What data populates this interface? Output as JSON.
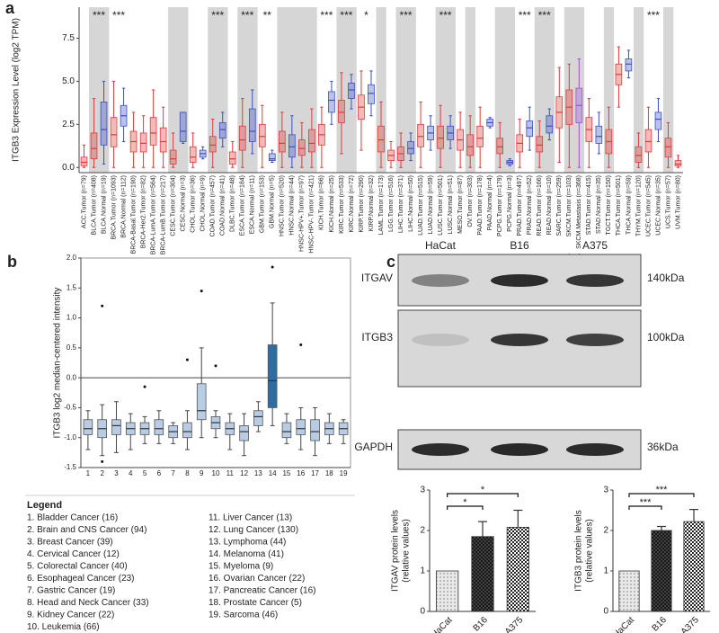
{
  "chart_data": [
    {
      "type": "box",
      "label": "a",
      "ylabel": "ITGB3 Expression Level (log2 TPM)",
      "categories": [
        "ACC.Tumor (n=79)",
        "BLCA.Tumor (n=408)",
        "BLCA.Normal (n=19)",
        "BRCA.Tumor (n=1093)",
        "BRCA.Normal (n=112)",
        "BRCA-Basal.Tumor (n=190)",
        "BRCA-Her2.Tumor (n=82)",
        "BRCA-LumA.Tumor (n=564)",
        "BRCA-LumB.Tumor (n=217)",
        "CESC.Tumor (n=304)",
        "CESC.Normal (n=3)",
        "CHOL.Tumor (n=36)",
        "CHOL.Normal (n=9)",
        "COAD.Tumor (n=457)",
        "COAD.Normal (n=41)",
        "DLBC.Tumor (n=48)",
        "ESCA.Tumor (n=184)",
        "ESCA.Normal (n=11)",
        "GBM.Tumor (n=153)",
        "GBM.Normal (n=5)",
        "HNSC.Tumor (n=520)",
        "HNSC.Normal (n=44)",
        "HNSC-HPV+.Tumor (n=97)",
        "HNSC-HPV-.Tumor (n=421)",
        "KICH.Tumor (n=66)",
        "KICH.Normal (n=25)",
        "KIRC.Tumor (n=533)",
        "KIRC.Normal (n=72)",
        "KIRP.Tumor (n=290)",
        "KIRP.Normal (n=32)",
        "LAML.Tumor (n=173)",
        "LGG.Tumor (n=516)",
        "LIHC.Tumor (n=371)",
        "LIHC.Normal (n=50)",
        "LUAD.Tumor (n=515)",
        "LUAD.Normal (n=59)",
        "LUSC.Tumor (n=501)",
        "LUSC.Normal (n=51)",
        "MESO.Tumor (n=87)",
        "OV.Tumor (n=303)",
        "PAAD.Tumor (n=178)",
        "PAAD.Normal (n=4)",
        "PCPG.Tumor (n=179)",
        "PCPG.Normal (n=3)",
        "PRAD.Tumor (n=497)",
        "PRAD.Normal (n=52)",
        "READ.Tumor (n=166)",
        "READ.Normal (n=10)",
        "SARC.Tumor (n=259)",
        "SKCM.Tumor (n=103)",
        "SKCM.Metastasis (n=368)",
        "STAD.Tumor (n=415)",
        "STAD.Normal (n=35)",
        "TGCT.Tumor (n=150)",
        "THCA.Tumor (n=501)",
        "THCA.Normal (n=59)",
        "THYM.Tumor (n=120)",
        "UCEC.Tumor (n=545)",
        "UCEC.Normal (n=35)",
        "UCS.Tumor (n=57)",
        "UVM.Tumor (n=80)"
      ],
      "colors": [
        "#e03a36",
        "#e03a36",
        "#3a4fc0",
        "#e03a36",
        "#3a4fc0",
        "#e03a36",
        "#e03a36",
        "#e03a36",
        "#e03a36",
        "#e03a36",
        "#3a4fc0",
        "#e03a36",
        "#3a4fc0",
        "#e03a36",
        "#3a4fc0",
        "#e03a36",
        "#e03a36",
        "#3a4fc0",
        "#e03a36",
        "#3a4fc0",
        "#e03a36",
        "#3a4fc0",
        "#e03a36",
        "#e03a36",
        "#e03a36",
        "#3a4fc0",
        "#e03a36",
        "#3a4fc0",
        "#e03a36",
        "#3a4fc0",
        "#e03a36",
        "#e03a36",
        "#e03a36",
        "#3a4fc0",
        "#e03a36",
        "#3a4fc0",
        "#e03a36",
        "#3a4fc0",
        "#e03a36",
        "#e03a36",
        "#e03a36",
        "#3a4fc0",
        "#e03a36",
        "#3a4fc0",
        "#e03a36",
        "#3a4fc0",
        "#e03a36",
        "#3a4fc0",
        "#e03a36",
        "#e03a36",
        "#a050d0",
        "#e03a36",
        "#3a4fc0",
        "#e03a36",
        "#e03a36",
        "#3a4fc0",
        "#e03a36",
        "#e03a36",
        "#3a4fc0",
        "#e03a36",
        "#e03a36"
      ],
      "low": [
        0,
        0,
        0.2,
        0,
        1.5,
        0,
        0,
        0,
        0,
        0,
        1.4,
        0,
        0.5,
        0,
        1.2,
        0,
        0,
        0.8,
        0,
        0.3,
        0,
        0,
        0,
        0,
        0,
        2.5,
        0.8,
        3.4,
        1.0,
        3.0,
        0,
        0,
        0,
        0.4,
        0,
        1.0,
        0,
        1.1,
        0,
        0,
        0,
        2.3,
        0,
        0.1,
        0,
        1.0,
        0,
        1.6,
        0.3,
        0,
        0,
        0,
        0.8,
        0,
        3.5,
        5.2,
        0,
        0,
        1.5,
        0,
        0
      ],
      "q1": [
        0.1,
        0.5,
        1.3,
        1.2,
        2.4,
        0.9,
        0.9,
        1.3,
        0.9,
        0.2,
        1.5,
        0.3,
        0.6,
        0.9,
        1.7,
        0.2,
        1.0,
        1.5,
        1.2,
        0.4,
        0.9,
        0.6,
        0.7,
        0.9,
        1.3,
        3.2,
        2.6,
        4.0,
        2.8,
        3.7,
        0.9,
        0.4,
        0.4,
        0.8,
        1.2,
        1.6,
        1.1,
        1.6,
        1.0,
        0.7,
        1.2,
        2.4,
        0.8,
        0.2,
        0.9,
        1.8,
        0.9,
        2.0,
        2.3,
        2.5,
        2.6,
        1.5,
        1.4,
        0.8,
        4.8,
        5.6,
        0.3,
        0.9,
        2.2,
        0.6,
        0.1
      ],
      "median": [
        0.3,
        1.1,
        2.2,
        1.9,
        3.0,
        1.5,
        1.4,
        2.0,
        1.5,
        0.5,
        2.1,
        0.6,
        0.8,
        1.3,
        2.2,
        0.5,
        1.6,
        2.1,
        1.8,
        0.5,
        1.4,
        1.2,
        1.1,
        1.4,
        1.9,
        3.9,
        3.2,
        4.5,
        3.5,
        4.3,
        1.6,
        0.7,
        0.8,
        1.1,
        1.8,
        2.0,
        1.7,
        2.0,
        1.6,
        1.2,
        1.7,
        2.6,
        1.2,
        0.3,
        1.4,
        2.3,
        1.3,
        2.4,
        3.2,
        3.5,
        3.6,
        2.2,
        1.8,
        1.5,
        5.4,
        6.0,
        0.7,
        1.5,
        2.8,
        1.2,
        0.2
      ],
      "q3": [
        0.6,
        2.0,
        3.8,
        2.9,
        3.6,
        2.1,
        2.0,
        2.9,
        2.3,
        1.0,
        3.2,
        1.2,
        1.0,
        1.8,
        2.6,
        0.9,
        2.4,
        3.4,
        2.5,
        0.8,
        2.1,
        1.9,
        1.6,
        2.2,
        2.5,
        4.4,
        3.9,
        4.9,
        4.2,
        4.8,
        2.4,
        1.0,
        1.2,
        1.5,
        2.5,
        2.4,
        2.4,
        2.4,
        2.2,
        1.9,
        2.4,
        2.8,
        1.7,
        0.4,
        1.9,
        2.7,
        1.8,
        3.0,
        4.1,
        4.5,
        4.6,
        2.9,
        2.4,
        2.2,
        6.0,
        6.3,
        1.2,
        2.2,
        3.2,
        1.7,
        0.4
      ],
      "high": [
        1.3,
        4.0,
        5.0,
        5.0,
        4.6,
        3.2,
        3.0,
        4.5,
        3.5,
        2.0,
        3.2,
        2.0,
        1.2,
        2.8,
        3.2,
        1.5,
        4.0,
        4.5,
        3.6,
        1.0,
        3.2,
        3.0,
        2.6,
        3.4,
        3.5,
        5.0,
        5.5,
        5.4,
        5.6,
        5.6,
        3.8,
        1.5,
        2.0,
        2.0,
        3.8,
        3.0,
        3.6,
        3.0,
        3.2,
        3.0,
        3.5,
        2.9,
        2.6,
        0.5,
        2.8,
        3.5,
        2.7,
        3.4,
        5.8,
        6.0,
        6.3,
        4.0,
        3.2,
        3.5,
        7.0,
        6.8,
        2.0,
        3.5,
        4.0,
        2.6,
        0.7
      ],
      "significance": [
        null,
        "***",
        null,
        "***",
        null,
        null,
        null,
        null,
        null,
        null,
        null,
        null,
        null,
        "***",
        null,
        null,
        "***",
        null,
        "**",
        null,
        null,
        null,
        null,
        null,
        "***",
        null,
        "***",
        null,
        "*",
        null,
        null,
        null,
        "***",
        null,
        null,
        null,
        "***",
        null,
        null,
        null,
        null,
        null,
        null,
        null,
        "***",
        null,
        "***",
        null,
        null,
        null,
        null,
        null,
        null,
        null,
        null,
        null,
        null,
        "***",
        null,
        null,
        null
      ],
      "ylim": [
        -0.3,
        9.3
      ],
      "yticks": [
        {
          "value": 0,
          "label": "0.0"
        },
        2.5,
        {
          "value": 5,
          "label": "5.0"
        },
        7.5
      ]
    },
    {
      "type": "box",
      "label": "b",
      "ylabel": "ITGB3 log2 median-centered intensity",
      "categories": [
        "1",
        "2",
        "3",
        "4",
        "5",
        "6",
        "7",
        "8",
        "9",
        "10",
        "11",
        "12",
        "13",
        "14",
        "15",
        "16",
        "17",
        "18",
        "19"
      ],
      "colors": [
        "#b8cce4",
        "#b8cce4",
        "#b8cce4",
        "#b8cce4",
        "#b8cce4",
        "#b8cce4",
        "#b8cce4",
        "#b8cce4",
        "#b8cce4",
        "#b8cce4",
        "#b8cce4",
        "#b8cce4",
        "#b8cce4",
        "#2e6da4",
        "#b8cce4",
        "#b8cce4",
        "#b8cce4",
        "#b8cce4",
        "#b8cce4"
      ],
      "low": [
        -1.2,
        -1.3,
        -1.25,
        -1.2,
        -1.1,
        -1.1,
        -1.1,
        -1.2,
        -1.0,
        -1.0,
        -1.2,
        -1.3,
        -0.9,
        -0.8,
        -1.1,
        -1.2,
        -1.3,
        -1.1,
        -1.1
      ],
      "q1": [
        -0.95,
        -1.0,
        -0.95,
        -0.95,
        -0.95,
        -0.95,
        -1.0,
        -1.0,
        -0.7,
        -0.85,
        -0.95,
        -1.05,
        -0.8,
        -0.5,
        -1.0,
        -0.95,
        -1.05,
        -0.95,
        -0.95
      ],
      "median": [
        -0.85,
        -0.85,
        -0.8,
        -0.85,
        -0.85,
        -0.85,
        -0.9,
        -0.9,
        -0.55,
        -0.75,
        -0.85,
        -0.9,
        -0.65,
        -0.05,
        -0.9,
        -0.85,
        -0.9,
        -0.85,
        -0.85
      ],
      "q3": [
        -0.7,
        -0.7,
        -0.7,
        -0.75,
        -0.75,
        -0.7,
        -0.8,
        -0.75,
        -0.1,
        -0.65,
        -0.75,
        -0.8,
        -0.55,
        0.55,
        -0.75,
        -0.7,
        -0.7,
        -0.75,
        -0.75
      ],
      "high": [
        -0.55,
        -0.45,
        -0.4,
        -0.6,
        -0.65,
        -0.55,
        -0.75,
        -0.55,
        0.5,
        -0.55,
        -0.6,
        -0.6,
        -0.4,
        1.25,
        -0.6,
        -0.5,
        -0.5,
        -0.6,
        -0.7
      ],
      "outliers": [
        [],
        [
          1.2,
          -1.4
        ],
        [],
        [],
        [
          -0.15
        ],
        [],
        [],
        [
          0.3
        ],
        [
          1.45
        ],
        [
          0.2
        ],
        [],
        [],
        [],
        [
          1.85
        ],
        [],
        [
          0.55
        ],
        [],
        [],
        []
      ],
      "hline": 0,
      "ylim": [
        -1.5,
        2.0
      ],
      "yticks": [
        -1.5,
        {
          "value": -1,
          "label": "-1.0"
        },
        -0.5,
        {
          "value": 0,
          "label": "0.0"
        },
        0.5,
        {
          "value": 1,
          "label": "1.0"
        },
        1.5,
        {
          "value": 2,
          "label": "2.0"
        }
      ],
      "legend_title": "Legend",
      "legend_items": [
        "1. Bladder Cancer (16)",
        "2. Brain and CNS Cancer (94)",
        "3. Breast Cancer (39)",
        "4. Cervical Cancer (12)",
        "5. Colorectal Cancer (40)",
        "6. Esophageal Cancer (23)",
        "7. Gastric Cancer (19)",
        "8. Head and Neck Cancer (33)",
        "9. Kidney Cancer (22)",
        "10. Leukemia (66)",
        "11. Liver Cancer (13)",
        "12. Lung Cancer (130)",
        "13. Lymphoma (44)",
        "14. Melanoma (41)",
        "15. Myeloma (9)",
        "16. Ovarian Cancer (22)",
        "17. Pancreatic Cancer (16)",
        "18. Prostate Cancer (5)",
        "19. Sarcoma (46)"
      ],
      "legend_colors": [
        "#333333",
        "#333333",
        "#333333",
        "#333333",
        "#333333",
        "#333333",
        "#333333",
        "#333333",
        "#333333",
        "#333333",
        "#333333",
        "#333333",
        "#333333",
        "#3a7fbf",
        "#333333",
        "#333333",
        "#333333",
        "#333333",
        "#333333"
      ]
    },
    {
      "type": "bar",
      "ylabel": [
        "ITGAV protein levels",
        "(relative values)"
      ],
      "categories": [
        "HaCat",
        "B16",
        "A375"
      ],
      "values": [
        1.0,
        1.85,
        2.08
      ],
      "errors": [
        null,
        0.37,
        0.42
      ],
      "significance": [
        null,
        "*",
        "*"
      ],
      "ylim": [
        0,
        3
      ],
      "yticks": [
        0,
        1,
        2,
        3
      ]
    },
    {
      "type": "bar",
      "ylabel": [
        "ITGB3 protein levels",
        "(relative values)"
      ],
      "categories": [
        "HaCat",
        "B16",
        "A375"
      ],
      "values": [
        1.0,
        2.0,
        2.22
      ],
      "errors": [
        null,
        0.1,
        0.3
      ],
      "significance": [
        null,
        "***",
        "***"
      ],
      "ylim": [
        0,
        3
      ],
      "yticks": [
        0,
        1,
        2,
        3
      ]
    }
  ],
  "blot": {
    "label": "c",
    "lanes": [
      "HaCat",
      "B16",
      "A375"
    ],
    "rows": [
      {
        "protein": "ITGAV",
        "size": "140kDa"
      },
      {
        "protein": "ITGB3",
        "size": "100kDa"
      },
      {
        "protein": "GAPDH",
        "size": "36kDa"
      }
    ]
  }
}
